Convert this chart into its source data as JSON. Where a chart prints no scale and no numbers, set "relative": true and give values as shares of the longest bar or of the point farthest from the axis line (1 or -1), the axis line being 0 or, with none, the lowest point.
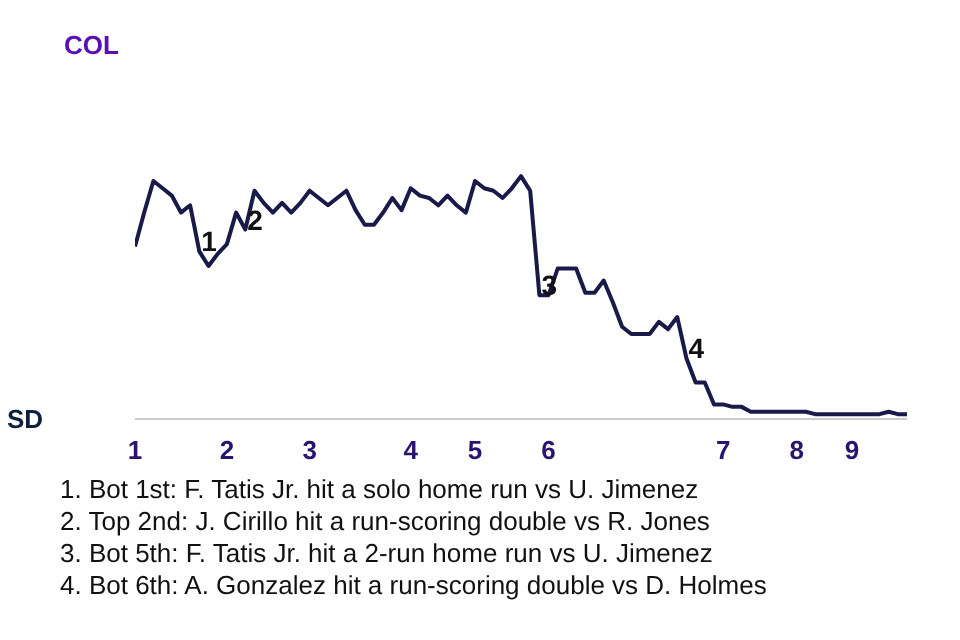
{
  "chart_data": {
    "type": "line",
    "relative": true,
    "categories": [
      "1",
      null,
      null,
      null,
      null,
      null,
      null,
      null,
      null,
      null,
      "2",
      null,
      null,
      null,
      null,
      null,
      null,
      null,
      null,
      "3",
      null,
      null,
      null,
      null,
      null,
      null,
      null,
      null,
      null,
      null,
      "4",
      null,
      null,
      null,
      null,
      null,
      null,
      "5",
      null,
      null,
      null,
      null,
      null,
      null,
      null,
      "6",
      null,
      null,
      null,
      null,
      null,
      null,
      null,
      null,
      null,
      null,
      null,
      null,
      null,
      null,
      null,
      null,
      null,
      null,
      "7",
      null,
      null,
      null,
      null,
      null,
      null,
      null,
      "8",
      null,
      null,
      null,
      null,
      null,
      "9",
      null,
      null,
      null,
      null,
      null,
      null
    ],
    "series": [
      {
        "color": "#1a1a4a",
        "values": [
          0.71,
          0.85,
          0.98,
          0.95,
          0.92,
          0.85,
          0.88,
          0.69,
          0.63,
          0.68,
          0.72,
          0.85,
          0.78,
          0.94,
          0.89,
          0.85,
          0.89,
          0.85,
          0.89,
          0.94,
          0.91,
          0.88,
          0.91,
          0.94,
          0.86,
          0.8,
          0.8,
          0.85,
          0.91,
          0.86,
          0.95,
          0.92,
          0.91,
          0.88,
          0.92,
          0.88,
          0.85,
          0.98,
          0.95,
          0.94,
          0.91,
          0.95,
          1,
          0.94,
          0.51,
          0.51,
          0.62,
          0.62,
          0.62,
          0.52,
          0.52,
          0.57,
          0.48,
          0.38,
          0.35,
          0.35,
          0.35,
          0.4,
          0.37,
          0.42,
          0.25,
          0.15,
          0.15,
          0.06,
          0.06,
          0.05,
          0.05,
          0.03,
          0.03,
          0.03,
          0.03,
          0.03,
          0.03,
          0.03,
          0.02,
          0.02,
          0.02,
          0.02,
          0.02,
          0.02,
          0.02,
          0.02,
          0.03,
          0.02,
          0.02
        ]
      }
    ],
    "annotations": [
      {
        "text": "1",
        "y": 0.69
      },
      {
        "text": "2",
        "y": 0.78
      },
      {
        "text": "3",
        "y": 0.51
      },
      {
        "text": "4",
        "y": 0.25
      },
      "COL",
      "SD",
      "1. Bot 1st: F. Tatis Jr. hit a solo home run vs U. Jimenez",
      "2. Top 2nd: J. Cirillo hit a run-scoring double vs R. Jones",
      "3. Bot 5th: F. Tatis Jr. hit a 2-run home run vs U. Jimenez",
      "4. Bot 6th: A. Gonzalez hit a run-scoring double vs D. Holmes"
    ]
  }
}
